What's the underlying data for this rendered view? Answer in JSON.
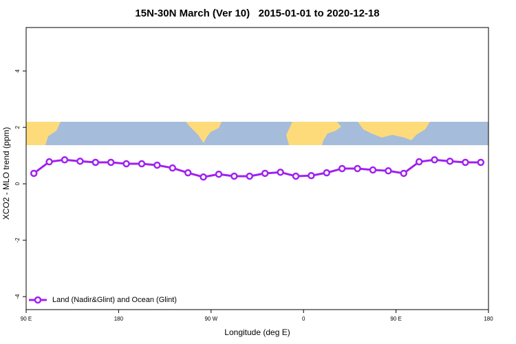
{
  "chart_data": {
    "type": "line",
    "title": "15N-30N March (Ver 10)   2015-01-01 to 2020-12-18",
    "xlabel": "Longitude (deg E)",
    "ylabel": "XCO2 - MLO trend (ppm)",
    "x": [
      97.5,
      112.5,
      127.5,
      142.5,
      157.5,
      172.5,
      187.5,
      202.5,
      217.5,
      232.5,
      247.5,
      262.5,
      277.5,
      292.5,
      307.5,
      322.5,
      337.5,
      352.5,
      367.5,
      382.5,
      397.5,
      412.5,
      427.5,
      442.5,
      457.5,
      472.5,
      487.5,
      502.5,
      517.5,
      532.5
    ],
    "series": [
      {
        "name": "Land (Nadir&Glint) and Ocean (Glint)",
        "color": "#a020f0",
        "values": [
          0.37,
          0.78,
          0.85,
          0.8,
          0.76,
          0.76,
          0.71,
          0.71,
          0.66,
          0.56,
          0.39,
          0.24,
          0.34,
          0.27,
          0.27,
          0.37,
          0.41,
          0.27,
          0.29,
          0.39,
          0.54,
          0.54,
          0.49,
          0.46,
          0.37,
          0.78,
          0.85,
          0.8,
          0.76,
          0.76
        ]
      }
    ],
    "xlim": [
      90,
      540
    ],
    "xticks": [
      {
        "value": 90,
        "label": "90 E"
      },
      {
        "value": 180,
        "label": "180"
      },
      {
        "value": 270,
        "label": "90 W"
      },
      {
        "value": 360,
        "label": "0"
      },
      {
        "value": 450,
        "label": "90 E"
      },
      {
        "value": 540,
        "label": "180"
      }
    ],
    "ylim": [
      -4.46,
      5.54
    ],
    "yticks": [
      -4,
      -2,
      0,
      2,
      4
    ],
    "legend": "bottom-left"
  }
}
